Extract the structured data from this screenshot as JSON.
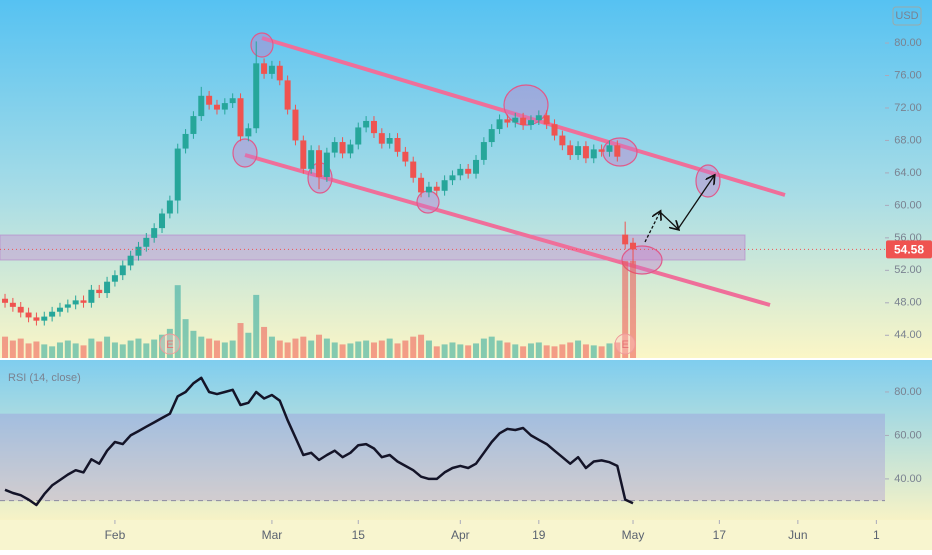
{
  "chart_data": [
    {
      "type": "candlestick",
      "axis_label": "USD",
      "x": [
        0,
        1,
        2,
        3,
        4,
        5,
        6,
        7,
        8,
        9,
        10,
        11,
        12,
        13,
        14,
        15,
        16,
        17,
        18,
        19,
        20,
        21,
        22,
        23,
        24,
        25,
        26,
        27,
        28,
        29,
        30,
        31,
        32,
        33,
        34,
        35,
        36,
        37,
        38,
        39,
        40,
        41,
        42,
        43,
        44,
        45,
        46,
        47,
        48,
        49,
        50,
        51,
        52,
        53,
        54,
        55,
        56,
        57,
        58,
        59,
        60,
        61,
        62,
        63,
        64,
        65,
        66,
        67,
        68,
        69,
        70,
        71,
        72,
        73,
        74,
        75,
        76,
        77,
        78,
        79,
        80
      ],
      "open": [
        48.5,
        48.0,
        47.5,
        46.8,
        46.2,
        45.8,
        46.3,
        46.9,
        47.4,
        47.8,
        48.3,
        48.0,
        49.6,
        49.2,
        50.6,
        51.4,
        52.6,
        53.8,
        54.9,
        56.0,
        57.2,
        59.0,
        60.6,
        67.0,
        68.8,
        71.0,
        73.5,
        72.4,
        71.8,
        72.6,
        73.2,
        68.5,
        69.5,
        77.5,
        76.2,
        77.2,
        75.4,
        71.8,
        68.0,
        64.5,
        66.8,
        63.5,
        66.5,
        67.8,
        66.4,
        67.5,
        69.6,
        70.4,
        68.9,
        67.6,
        68.3,
        66.6,
        65.4,
        63.4,
        61.6,
        62.3,
        61.8,
        63.1,
        63.7,
        64.5,
        63.9,
        65.6,
        67.8,
        69.4,
        70.6,
        70.2,
        70.8,
        69.9,
        70.5,
        71.1,
        70.0,
        68.6,
        67.4,
        66.2,
        67.3,
        65.8,
        66.9,
        66.6,
        67.4,
        56.4,
        55.4
      ],
      "high": [
        49.1,
        48.6,
        48.1,
        47.4,
        46.8,
        46.9,
        47.5,
        48.0,
        48.4,
        48.9,
        48.9,
        50.2,
        50.2,
        51.2,
        52.0,
        53.2,
        54.4,
        55.5,
        56.6,
        57.8,
        59.6,
        61.2,
        67.6,
        69.4,
        71.6,
        74.6,
        74.1,
        73.0,
        73.2,
        73.8,
        73.8,
        70.1,
        80.2,
        78.1,
        77.8,
        77.8,
        76.0,
        72.4,
        68.6,
        67.4,
        67.4,
        67.1,
        68.4,
        68.4,
        68.1,
        70.2,
        71.0,
        71.0,
        69.5,
        68.9,
        68.9,
        67.2,
        66.0,
        64.0,
        62.9,
        62.9,
        63.7,
        64.3,
        65.1,
        65.1,
        66.2,
        68.4,
        70.0,
        71.2,
        71.2,
        71.4,
        71.4,
        71.1,
        71.7,
        71.7,
        70.6,
        69.2,
        68.0,
        67.9,
        67.9,
        67.5,
        67.5,
        68.0,
        68.0,
        58.0,
        56.0
      ],
      "low": [
        47.4,
        46.9,
        46.2,
        45.6,
        45.2,
        45.2,
        45.7,
        46.3,
        46.8,
        47.2,
        47.4,
        47.4,
        48.6,
        48.6,
        50.0,
        50.8,
        52.0,
        53.2,
        54.3,
        55.4,
        56.6,
        58.4,
        59.0,
        66.4,
        68.2,
        70.4,
        71.8,
        71.2,
        71.2,
        72.0,
        67.9,
        67.9,
        68.9,
        75.6,
        75.6,
        74.8,
        71.2,
        67.4,
        63.9,
        63.9,
        62.0,
        62.9,
        65.9,
        65.8,
        65.8,
        66.9,
        69.0,
        68.3,
        67.0,
        67.0,
        66.0,
        64.8,
        62.8,
        61.0,
        61.0,
        61.2,
        61.2,
        62.5,
        63.1,
        63.3,
        63.3,
        65.0,
        67.2,
        68.8,
        69.6,
        69.6,
        69.3,
        69.3,
        69.9,
        69.4,
        68.0,
        66.8,
        65.6,
        65.6,
        65.2,
        65.2,
        66.0,
        66.0,
        65.4,
        54.6,
        52.8
      ],
      "close": [
        48.0,
        47.5,
        46.8,
        46.2,
        45.8,
        46.3,
        46.9,
        47.4,
        47.8,
        48.3,
        48.0,
        49.6,
        49.2,
        50.6,
        51.4,
        52.6,
        53.8,
        54.9,
        56.0,
        57.2,
        59.0,
        60.6,
        67.0,
        68.8,
        71.0,
        73.5,
        72.4,
        71.8,
        72.6,
        73.2,
        68.5,
        69.5,
        77.5,
        76.2,
        77.2,
        75.4,
        71.8,
        68.0,
        64.5,
        66.8,
        63.5,
        66.5,
        67.8,
        66.4,
        67.5,
        69.6,
        70.4,
        68.9,
        67.6,
        68.3,
        66.6,
        65.4,
        63.4,
        61.6,
        62.3,
        61.8,
        63.1,
        63.7,
        64.5,
        63.9,
        65.6,
        67.8,
        69.4,
        70.6,
        70.2,
        70.8,
        69.9,
        70.5,
        71.1,
        70.0,
        68.6,
        67.4,
        66.2,
        67.3,
        65.8,
        66.9,
        66.6,
        67.4,
        66.0,
        55.2,
        54.58
      ],
      "volume": [
        22,
        18,
        20,
        15,
        17,
        14,
        12,
        16,
        18,
        15,
        13,
        20,
        17,
        22,
        16,
        14,
        18,
        20,
        15,
        19,
        24,
        30,
        75,
        40,
        28,
        22,
        20,
        18,
        16,
        18,
        36,
        26,
        65,
        32,
        22,
        18,
        16,
        20,
        22,
        18,
        24,
        20,
        16,
        14,
        15,
        17,
        18,
        16,
        18,
        20,
        15,
        18,
        22,
        24,
        18,
        12,
        14,
        16,
        14,
        13,
        15,
        20,
        22,
        18,
        16,
        14,
        12,
        15,
        16,
        13,
        12,
        14,
        16,
        18,
        14,
        13,
        12,
        15,
        16,
        100,
        100
      ],
      "xlim": [
        -0.64,
        112.1
      ],
      "ylim": [
        41.2,
        85.3
      ],
      "yticks": [
        {
          "value": 80,
          "label": "80.00"
        },
        {
          "value": 76,
          "label": "76.00"
        },
        {
          "value": 72,
          "label": "72.00"
        },
        {
          "value": 68,
          "label": "68.00"
        },
        {
          "value": 64,
          "label": "64.00"
        },
        {
          "value": 60,
          "label": "60.00"
        },
        {
          "value": 56,
          "label": "56.00"
        },
        {
          "value": 52,
          "label": "52.00"
        },
        {
          "value": 48,
          "label": "48.00"
        },
        {
          "value": 44,
          "label": "44.00"
        }
      ],
      "volume_lim": [
        0,
        103
      ],
      "up_color": "#26a69a",
      "down_color": "#ef5350",
      "events": [
        {
          "x": 21,
          "label": "E"
        },
        {
          "x": 79,
          "label": "E"
        }
      ]
    },
    {
      "type": "line",
      "title": "RSI (14, close)",
      "x": [
        0,
        1,
        2,
        3,
        4,
        5,
        6,
        7,
        8,
        9,
        10,
        11,
        12,
        13,
        14,
        15,
        16,
        17,
        18,
        19,
        20,
        21,
        22,
        23,
        24,
        25,
        26,
        27,
        28,
        29,
        30,
        31,
        32,
        33,
        34,
        35,
        36,
        37,
        38,
        39,
        40,
        41,
        42,
        43,
        44,
        45,
        46,
        47,
        48,
        49,
        50,
        51,
        52,
        53,
        54,
        55,
        56,
        57,
        58,
        59,
        60,
        61,
        62,
        63,
        64,
        65,
        66,
        67,
        68,
        69,
        70,
        71,
        72,
        73,
        74,
        75,
        76,
        77,
        78,
        79,
        80
      ],
      "values": [
        35,
        33.5,
        32.5,
        30.5,
        28,
        33,
        37,
        39.5,
        42,
        44,
        43,
        49,
        47,
        53,
        57,
        56,
        60,
        62,
        64,
        66,
        68,
        70,
        78,
        80,
        84,
        86.5,
        80,
        79,
        80,
        81,
        74,
        75,
        80,
        77,
        78.6,
        76,
        67,
        59,
        51,
        52,
        48.7,
        51,
        53,
        50,
        52,
        55.5,
        56,
        54,
        50,
        51,
        48,
        46,
        44,
        41,
        40,
        40,
        43,
        45,
        46,
        45,
        47,
        52,
        57,
        61,
        63,
        62.5,
        63.4,
        60,
        58,
        56,
        53,
        50,
        47,
        50,
        45,
        48,
        48.5,
        47.7,
        46,
        30.5,
        28.8
      ],
      "color": "#141428",
      "ylim": [
        21.1,
        94.7
      ],
      "yticks": [
        {
          "value": 80,
          "label": "80.00"
        },
        {
          "value": 60,
          "label": "60.00"
        },
        {
          "value": 40,
          "label": "40.00"
        }
      ],
      "band": [
        30,
        70
      ],
      "xlim": [
        -0.64,
        112.1
      ],
      "xticks": [
        {
          "value": 14,
          "label": "Feb"
        },
        {
          "value": 34,
          "label": "Mar"
        },
        {
          "value": 45,
          "label": "15"
        },
        {
          "value": 58,
          "label": "Apr"
        },
        {
          "value": 68,
          "label": "19"
        },
        {
          "value": 80,
          "label": "May"
        },
        {
          "value": 91,
          "label": "17"
        },
        {
          "value": 101,
          "label": "Jun"
        },
        {
          "value": 111,
          "label": "1"
        }
      ]
    }
  ]
}
